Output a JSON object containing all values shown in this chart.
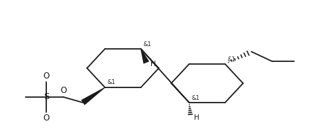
{
  "bg_color": "#ffffff",
  "line_color": "#1a1a1a",
  "lw": 1.3,
  "figsize": [
    4.49,
    1.99
  ],
  "dpi": 100,
  "xlim": [
    0,
    449
  ],
  "ylim": [
    0,
    199
  ]
}
